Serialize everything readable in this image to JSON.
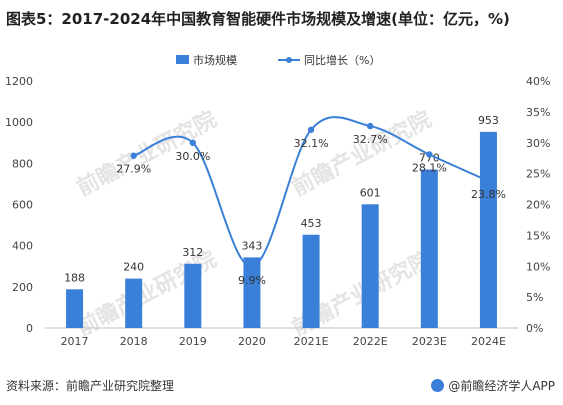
{
  "title": "图表5：2017-2024年中国教育智能硬件市场规模及增速(单位：亿元，%)",
  "source": "资料来源：前瞻产业研究院整理",
  "brand": "@前瞻经济学人APP",
  "watermark": "前瞻产业研究院",
  "colors": {
    "bar": "#3a7fd8",
    "line": "#3a7fd8",
    "axis": "#bfbfbf",
    "text": "#444444"
  },
  "chart_data": {
    "type": "bar",
    "categories": [
      "2017",
      "2018",
      "2019",
      "2020",
      "2021E",
      "2022E",
      "2023E",
      "2024E"
    ],
    "series": [
      {
        "name": "市场规模",
        "type": "bar",
        "axis": "left",
        "values": [
          188,
          240,
          312,
          343,
          453,
          601,
          770,
          953
        ]
      },
      {
        "name": "同比增长（%）",
        "type": "line",
        "axis": "right",
        "values": [
          null,
          27.9,
          30.0,
          9.9,
          32.1,
          32.7,
          28.1,
          23.8
        ]
      }
    ],
    "bar_labels": [
      "188",
      "240",
      "312",
      "343",
      "453",
      "601",
      "770",
      "953"
    ],
    "line_labels": [
      "",
      "27.9%",
      "30.0%",
      "9.9%",
      "32.1%",
      "32.7%",
      "28.1%",
      "23.8%"
    ],
    "y_left": {
      "min": 0,
      "max": 1200,
      "ticks": [
        0,
        200,
        400,
        600,
        800,
        1000,
        1200
      ]
    },
    "y_right": {
      "min": 0,
      "max": 40,
      "ticks": [
        "0%",
        "5%",
        "10%",
        "15%",
        "20%",
        "25%",
        "30%",
        "35%",
        "40%"
      ]
    },
    "legend_position": "top-center",
    "grid": false
  }
}
